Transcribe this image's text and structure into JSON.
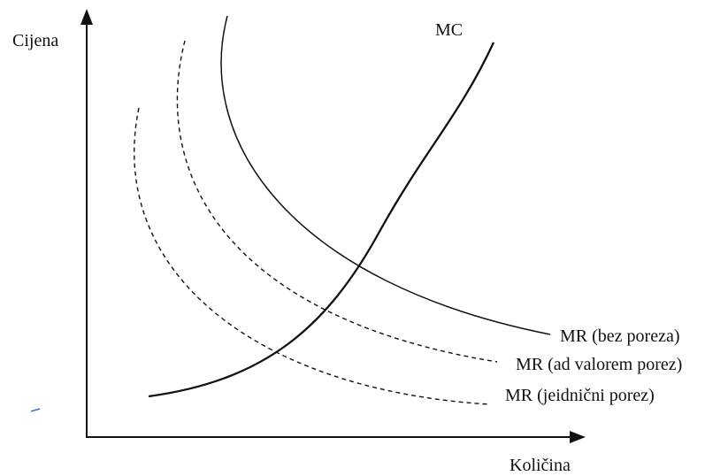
{
  "axes": {
    "y_label": "Cijena",
    "x_label": "Količina"
  },
  "curves": {
    "mc": {
      "label": "MC",
      "style": "solid"
    },
    "mr_bez_poreza": {
      "label": "MR (bez poreza)",
      "style": "solid"
    },
    "mr_ad_valorem": {
      "label": "MR (ad valorem porez)",
      "style": "dashed"
    },
    "mr_jedinicni": {
      "label": "MR (jeidnični porez)",
      "style": "dashed"
    }
  },
  "colors": {
    "line": "#111111",
    "background": "#ffffff",
    "stray_mark": "#3a6fd8"
  }
}
